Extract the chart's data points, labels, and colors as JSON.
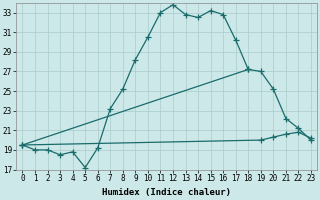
{
  "xlabel": "Humidex (Indice chaleur)",
  "bg_color": "#cde8e8",
  "grid_color": "#aacccc",
  "line_color": "#1a6b6b",
  "xlim": [
    -0.5,
    23.5
  ],
  "ylim": [
    17,
    34
  ],
  "yticks": [
    17,
    19,
    21,
    23,
    25,
    27,
    29,
    31,
    33
  ],
  "xticks": [
    0,
    1,
    2,
    3,
    4,
    5,
    6,
    7,
    8,
    9,
    10,
    11,
    12,
    13,
    14,
    15,
    16,
    17,
    18,
    19,
    20,
    21,
    22,
    23
  ],
  "line1_x": [
    0,
    1,
    2,
    3,
    4,
    5,
    6,
    7,
    8,
    9,
    10,
    11,
    12,
    13,
    14,
    15,
    16,
    17,
    18
  ],
  "line1_y": [
    19.5,
    19.0,
    19.0,
    18.5,
    18.8,
    17.2,
    19.2,
    23.2,
    25.2,
    28.2,
    30.5,
    33.0,
    33.8,
    32.8,
    32.5,
    33.2,
    32.8,
    30.2,
    27.2
  ],
  "line2_x": [
    0,
    18,
    19,
    20,
    21,
    22,
    23
  ],
  "line2_y": [
    19.5,
    27.2,
    27.0,
    25.2,
    22.2,
    21.2,
    20.0
  ],
  "line3_x": [
    0,
    19,
    20,
    21,
    22,
    23
  ],
  "line3_y": [
    19.5,
    20.0,
    20.3,
    20.6,
    20.8,
    20.2
  ]
}
